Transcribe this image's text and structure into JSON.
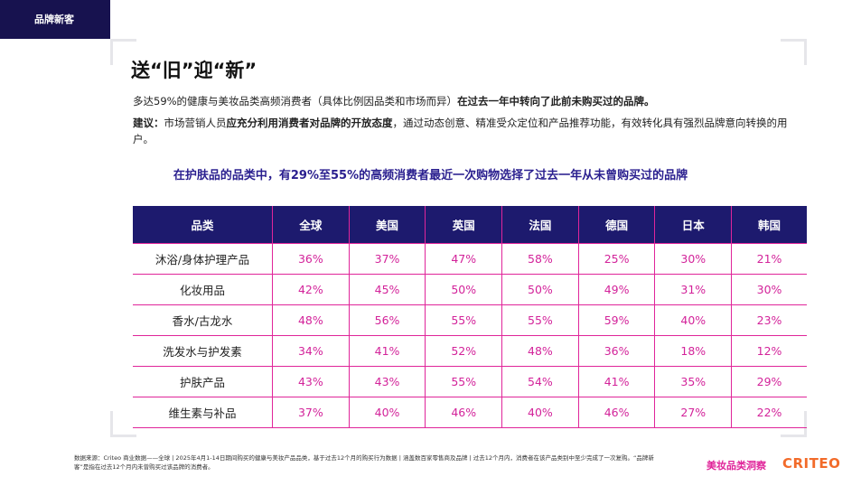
{
  "header": {
    "tag": "品牌新客",
    "title": "送“旧”迎“新”"
  },
  "intro": {
    "runs": [
      {
        "text": "多达59%的健康与美妆品类高频消费者（具体比例因品类和市场而异）",
        "bold": false
      },
      {
        "text": "在过去一年中转向了此前未购买过的品牌。",
        "bold": true
      }
    ]
  },
  "advice": {
    "runs": [
      {
        "text": "建议：",
        "bold": true
      },
      {
        "text": "市场营销人员",
        "bold": false
      },
      {
        "text": "应充分利用消费者对品牌的开放态度",
        "bold": true
      },
      {
        "text": "，通过动态创意、精准受众定位和产品推荐功能，有效转化具有强烈品牌意向转换的用户。",
        "bold": false
      }
    ]
  },
  "subtitle": "在护肤品的品类中，有29%至55%的高频消费者最近一次购物选择了过去一年从未曾购买过的品牌",
  "table": {
    "columns": [
      "品类",
      "全球",
      "美国",
      "英国",
      "法国",
      "德国",
      "日本",
      "韩国"
    ],
    "rows": [
      [
        "沐浴/身体护理产品",
        "36%",
        "37%",
        "47%",
        "58%",
        "25%",
        "30%",
        "21%"
      ],
      [
        "化妆用品",
        "42%",
        "45%",
        "50%",
        "50%",
        "49%",
        "31%",
        "30%"
      ],
      [
        "香水/古龙水",
        "48%",
        "56%",
        "55%",
        "55%",
        "59%",
        "40%",
        "23%"
      ],
      [
        "洗发水与护发素",
        "34%",
        "41%",
        "52%",
        "48%",
        "36%",
        "18%",
        "12%"
      ],
      [
        "护肤产品",
        "43%",
        "43%",
        "55%",
        "54%",
        "41%",
        "35%",
        "29%"
      ],
      [
        "维生素与补品",
        "37%",
        "40%",
        "46%",
        "40%",
        "46%",
        "27%",
        "22%"
      ]
    ]
  },
  "footnote": "数据来源：Criteo 商业数据——全球 | 2025年4月1-14日期间购买的健康与美妆产品品类，基于过去12个月的购买行为数据 | 涵盖数百家零售商及品牌 | 过去12个月内，消费者在该产品类别中至少完成了一次复购。“品牌新客”是指在过去12个月内未曾购买过该品牌的消费者。",
  "logos": {
    "insight": "美妆品类洞察",
    "brand": "CRITEO"
  }
}
